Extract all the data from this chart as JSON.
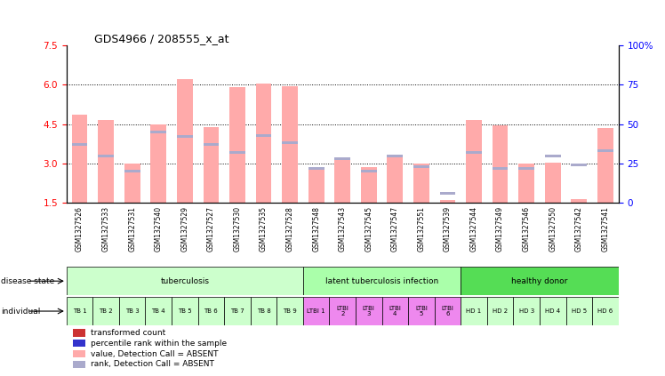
{
  "title": "GDS4966 / 208555_x_at",
  "samples": [
    "GSM1327526",
    "GSM1327533",
    "GSM1327531",
    "GSM1327540",
    "GSM1327529",
    "GSM1327527",
    "GSM1327530",
    "GSM1327535",
    "GSM1327528",
    "GSM1327548",
    "GSM1327543",
    "GSM1327545",
    "GSM1327547",
    "GSM1327551",
    "GSM1327539",
    "GSM1327544",
    "GSM1327549",
    "GSM1327546",
    "GSM1327550",
    "GSM1327542",
    "GSM1327541"
  ],
  "transformed_count": [
    4.85,
    4.65,
    3.0,
    4.5,
    6.2,
    4.4,
    5.9,
    6.05,
    5.95,
    2.85,
    3.15,
    2.85,
    3.3,
    3.0,
    1.6,
    4.65,
    4.45,
    3.0,
    3.05,
    1.65,
    4.35
  ],
  "percentile_rank": [
    37,
    30,
    20,
    45,
    42,
    37,
    32,
    43,
    38,
    22,
    28,
    20,
    30,
    23,
    6,
    32,
    22,
    22,
    30,
    24,
    33
  ],
  "absent_flags": [
    true,
    true,
    true,
    true,
    true,
    true,
    true,
    true,
    true,
    true,
    true,
    true,
    true,
    true,
    true,
    true,
    true,
    true,
    true,
    true,
    true
  ],
  "groups": [
    {
      "name": "tuberculosis",
      "start": 0,
      "end": 9,
      "color": "#ccffcc"
    },
    {
      "name": "latent tuberculosis infection",
      "start": 9,
      "end": 15,
      "color": "#aaffaa"
    },
    {
      "name": "healthy donor",
      "start": 15,
      "end": 21,
      "color": "#55dd55"
    }
  ],
  "indiv_labels": [
    "TB 1",
    "TB 2",
    "TB 3",
    "TB 4",
    "TB 5",
    "TB 6",
    "TB 7",
    "TB 8",
    "TB 9",
    "LTBI 1",
    "LTBI\n2",
    "LTBI\n3",
    "LTBI\n4",
    "LTBI\n5",
    "LTBI\n6",
    "HD 1",
    "HD 2",
    "HD 3",
    "HD 4",
    "HD 5",
    "HD 6"
  ],
  "indiv_colors": [
    "#ccffcc",
    "#ccffcc",
    "#ccffcc",
    "#ccffcc",
    "#ccffcc",
    "#ccffcc",
    "#ccffcc",
    "#ccffcc",
    "#ccffcc",
    "#ee88ee",
    "#ee88ee",
    "#ee88ee",
    "#ee88ee",
    "#ee88ee",
    "#ee88ee",
    "#ccffcc",
    "#ccffcc",
    "#ccffcc",
    "#ccffcc",
    "#ccffcc",
    "#ccffcc"
  ],
  "ylim_left": [
    1.5,
    7.5
  ],
  "ylim_right": [
    0,
    100
  ],
  "yticks_left": [
    1.5,
    3.0,
    4.5,
    6.0,
    7.5
  ],
  "yticks_right": [
    0,
    25,
    50,
    75,
    100
  ],
  "bar_color_absent": "#ffaaaa",
  "rank_color_absent": "#aaaacc",
  "bar_width": 0.6,
  "legend_items": [
    {
      "color": "#cc3333",
      "label": "transformed count"
    },
    {
      "color": "#3333cc",
      "label": "percentile rank within the sample"
    },
    {
      "color": "#ffaaaa",
      "label": "value, Detection Call = ABSENT"
    },
    {
      "color": "#aaaacc",
      "label": "rank, Detection Call = ABSENT"
    }
  ]
}
